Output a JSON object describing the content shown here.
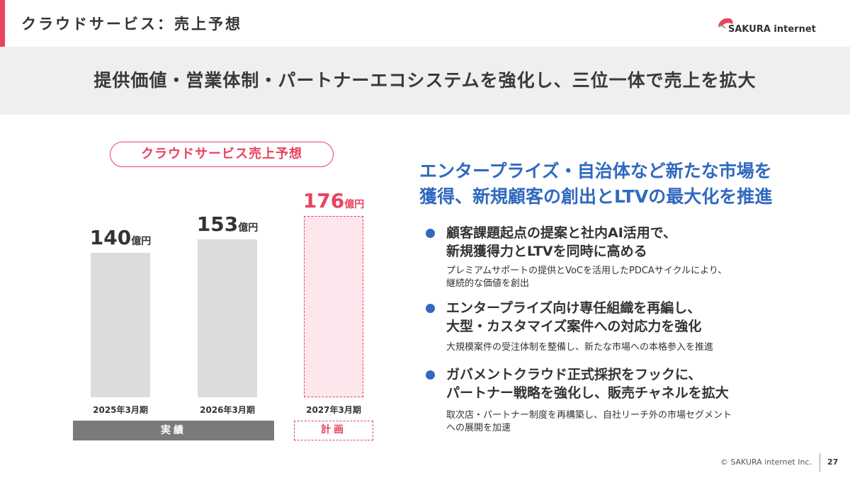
{
  "header": {
    "title": "クラウドサービス：売上予想",
    "logo_text": "SAKURA internet"
  },
  "banner": {
    "text": "提供価値・営業体制・パートナーエコシステムを強化し、三位一体で売上を拡大"
  },
  "chart_data": {
    "type": "bar",
    "title": "クラウドサービス売上予想",
    "categories": [
      "2025年3月期",
      "2026年3月期",
      "2027年3月期"
    ],
    "values": [
      140,
      153,
      176
    ],
    "value_labels": [
      "140",
      "153",
      "176"
    ],
    "unit": "億円",
    "groups": [
      "実績",
      "計画"
    ],
    "planned_index": 2,
    "colors": {
      "actual": "#dcdcdc",
      "plan_fill": "#fde7ec",
      "plan_border": "#e8435f"
    }
  },
  "right": {
    "headline_lines": [
      "エンタープライズ・自治体など新たな市場を",
      "獲得、新規顧客の創出とLTVの最大化を推進"
    ],
    "bullets": [
      {
        "title_lines": [
          "顧客課題起点の提案と社内AI活用で、",
          "新規獲得力とLTVを同時に高める"
        ],
        "desc_lines": [
          "プレミアムサポートの提供とVoCを活用したPDCAサイクルにより、",
          "継続的な価値を創出"
        ]
      },
      {
        "title_lines": [
          "エンタープライズ向け専任組織を再編し、",
          "大型・カスタマイズ案件への対応力を強化"
        ],
        "desc_lines": [
          "大規模案件の受注体制を整備し、新たな市場への本格参入を推進"
        ]
      },
      {
        "title_lines": [
          "ガバメントクラウド正式採択をフックに、",
          "パートナー戦略を強化し、販売チャネルを拡大"
        ],
        "desc_lines": [
          "取次店・パートナー制度を再構築し、自社リーチ外の市場セグメント",
          "への展開を加速"
        ]
      }
    ]
  },
  "footer": {
    "copyright": "© SAKURA internet Inc.",
    "page": "27"
  },
  "colors": {
    "accent": "#e8435f",
    "blue": "#3069c0"
  }
}
